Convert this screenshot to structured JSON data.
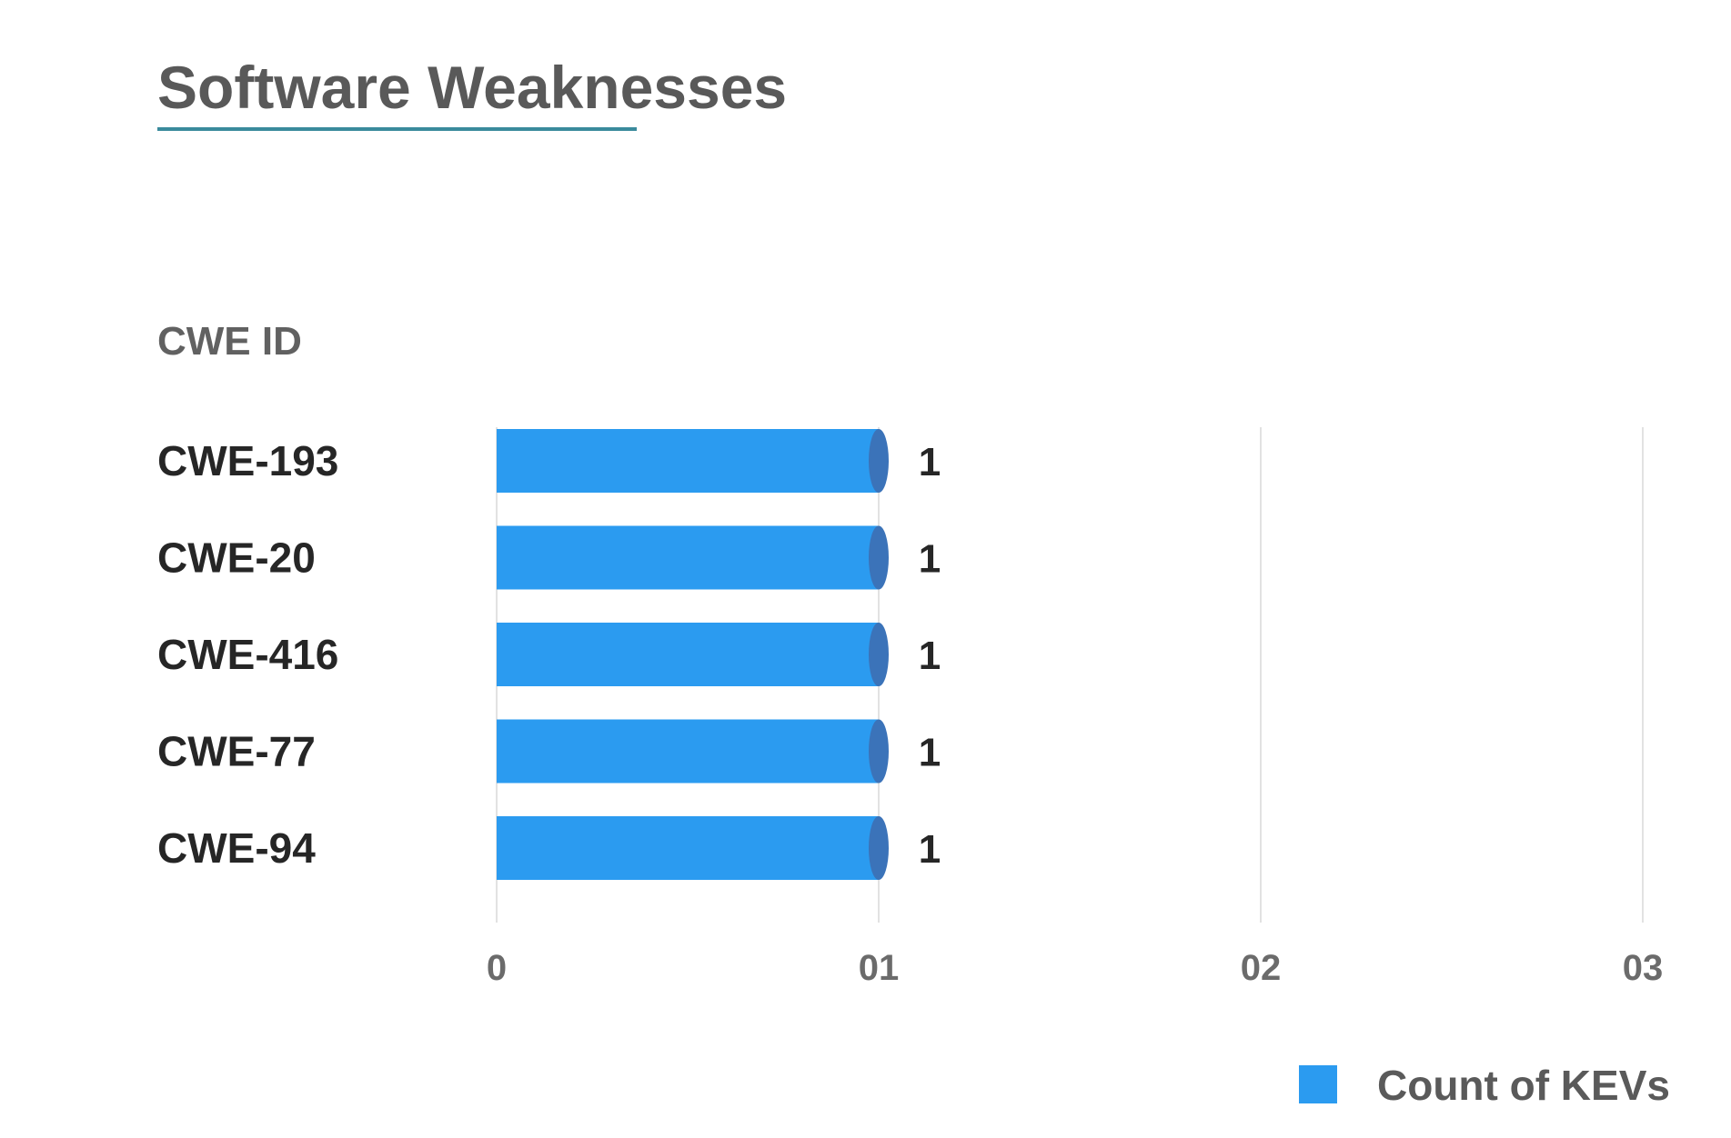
{
  "chart_data": {
    "type": "bar",
    "orientation": "horizontal",
    "title": "Software Weaknesses",
    "ylabel": "CWE ID",
    "xlabel": "",
    "categories": [
      "CWE-193",
      "CWE-20",
      "CWE-416",
      "CWE-77",
      "CWE-94"
    ],
    "series": [
      {
        "name": "Count of KEVs",
        "values": [
          1,
          1,
          1,
          1,
          1
        ],
        "color": "#2b9bf0",
        "cap_color": "#3b73b9"
      }
    ],
    "data_labels": [
      "1",
      "1",
      "1",
      "1",
      "1"
    ],
    "xlim": [
      0,
      3
    ],
    "x_ticks": [
      0,
      1,
      2,
      3
    ],
    "x_tick_labels": [
      "0",
      "01",
      "02",
      "03"
    ],
    "grid": "vertical",
    "legend_position": "bottom-right",
    "colors": {
      "title_underline": "#3a8a9c",
      "gridline": "#d9d9d9"
    }
  }
}
